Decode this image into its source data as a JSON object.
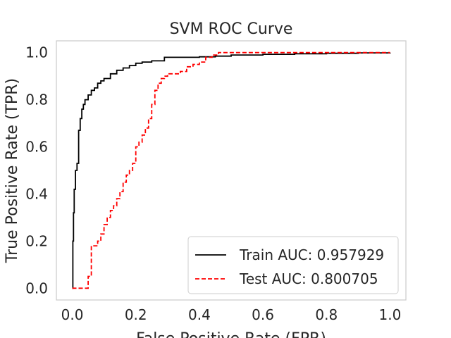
{
  "chart_data": {
    "type": "line",
    "title": "SVM ROC Curve",
    "xlabel": "False Positive Rate (FPR)",
    "ylabel": "True Positive Rate (TPR)",
    "xlim": [
      -0.05,
      1.05
    ],
    "ylim": [
      -0.05,
      1.05
    ],
    "xticks": [
      0.0,
      0.2,
      0.4,
      0.6,
      0.8,
      1.0
    ],
    "yticks": [
      0.0,
      0.2,
      0.4,
      0.6,
      0.8,
      1.0
    ],
    "xtick_labels": [
      "0.0",
      "0.2",
      "0.4",
      "0.6",
      "0.8",
      "1.0"
    ],
    "ytick_labels": [
      "0.0",
      "0.2",
      "0.4",
      "0.6",
      "0.8",
      "1.0"
    ],
    "grid": false,
    "legend_position": "lower-right",
    "series": [
      {
        "name": "Train AUC: 0.957929",
        "color": "#000000",
        "line_style": "solid",
        "x": [
          0,
          0.002,
          0.004,
          0.006,
          0.01,
          0.015,
          0.02,
          0.025,
          0.03,
          0.035,
          0.04,
          0.05,
          0.06,
          0.07,
          0.08,
          0.09,
          0.1,
          0.12,
          0.14,
          0.16,
          0.18,
          0.2,
          0.22,
          0.25,
          0.29,
          0.3,
          0.35,
          0.4,
          0.45,
          0.5,
          0.6,
          0.7,
          0.8,
          0.9,
          1.0
        ],
        "y": [
          0,
          0.2,
          0.32,
          0.42,
          0.5,
          0.53,
          0.67,
          0.72,
          0.76,
          0.78,
          0.8,
          0.82,
          0.84,
          0.85,
          0.87,
          0.88,
          0.89,
          0.91,
          0.925,
          0.935,
          0.945,
          0.955,
          0.96,
          0.965,
          0.98,
          0.98,
          0.98,
          0.982,
          0.985,
          0.99,
          0.993,
          0.995,
          0.997,
          0.999,
          1.0
        ]
      },
      {
        "name": "Test AUC: 0.800705",
        "color": "#ff0000",
        "line_style": "dashed",
        "x": [
          0,
          0.04,
          0.05,
          0.06,
          0.08,
          0.09,
          0.1,
          0.11,
          0.12,
          0.13,
          0.14,
          0.15,
          0.16,
          0.17,
          0.18,
          0.19,
          0.2,
          0.21,
          0.22,
          0.23,
          0.24,
          0.25,
          0.26,
          0.27,
          0.28,
          0.29,
          0.3,
          0.32,
          0.34,
          0.36,
          0.38,
          0.4,
          0.42,
          0.44,
          0.46,
          0.5,
          1.0
        ],
        "y": [
          0,
          0.0,
          0.05,
          0.18,
          0.2,
          0.23,
          0.27,
          0.3,
          0.33,
          0.35,
          0.38,
          0.41,
          0.45,
          0.48,
          0.5,
          0.53,
          0.6,
          0.62,
          0.65,
          0.68,
          0.72,
          0.78,
          0.84,
          0.87,
          0.89,
          0.9,
          0.91,
          0.91,
          0.92,
          0.94,
          0.95,
          0.96,
          0.98,
          0.99,
          1.0,
          1.0,
          1.0
        ]
      }
    ]
  }
}
